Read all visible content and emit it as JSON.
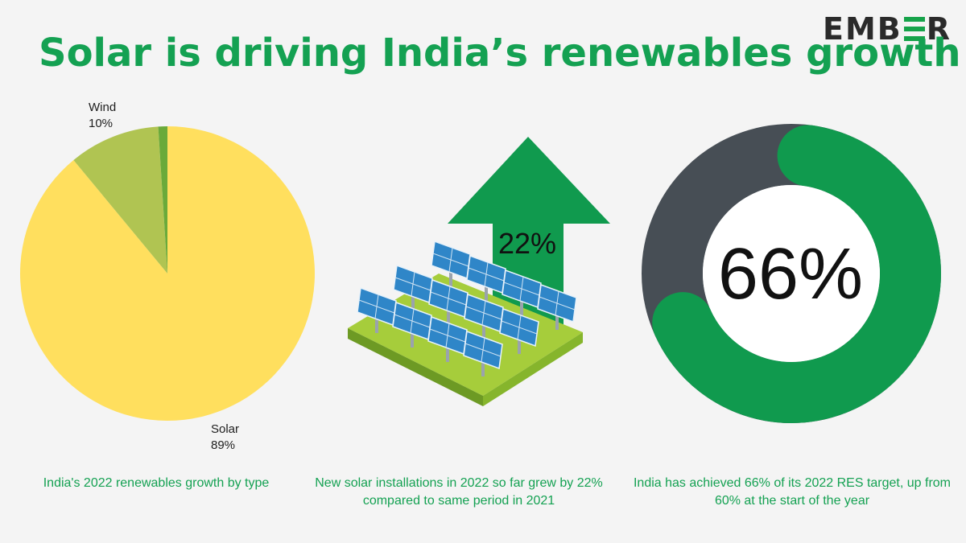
{
  "logo": {
    "text_left": "EMB",
    "text_right": "R",
    "accent": "#16a34a"
  },
  "title": "Solar is driving India’s renewables growth",
  "colors": {
    "solar": "#ffdf5e",
    "wind": "#b0c452",
    "other": "#6aaa3a",
    "green": "#109a4e",
    "grey": "#474e55"
  },
  "chart_data": [
    {
      "type": "pie",
      "slices": [
        {
          "label": "Solar",
          "pct_label": "89%",
          "value": 89
        },
        {
          "label": "Wind",
          "pct_label": "10%",
          "value": 10
        },
        {
          "label": "",
          "pct_label": "",
          "value": 1
        }
      ],
      "caption": "India's 2022 renewables growth by type"
    },
    {
      "type": "other",
      "value_label": "22%",
      "value": 22,
      "caption": "New solar installations in 2022 so far grew by 22% compared to same period in 2021"
    },
    {
      "type": "pie",
      "subtype": "donut",
      "value": 66,
      "value_label": "66%",
      "caption": "India has achieved 66% of its 2022 RES target, up from 60% at the start of the year"
    }
  ]
}
